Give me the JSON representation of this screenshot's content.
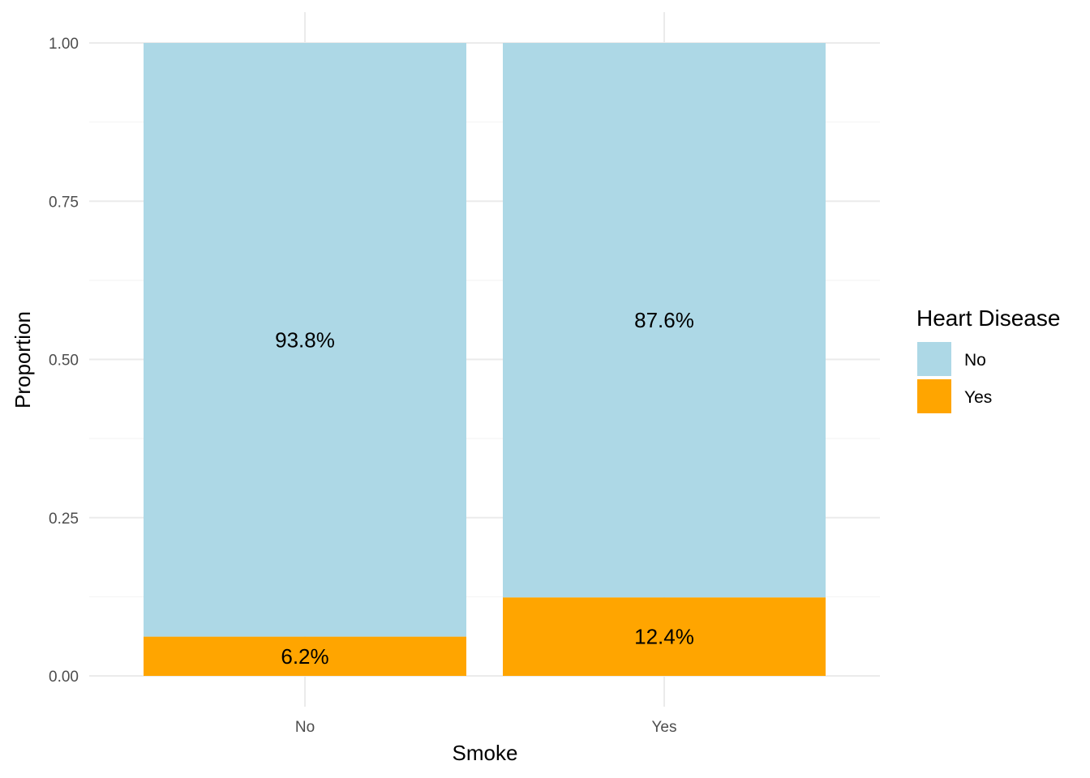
{
  "chart_data": {
    "type": "bar",
    "stacked": true,
    "categories": [
      "No",
      "Yes"
    ],
    "series": [
      {
        "name": "No",
        "values": [
          0.938,
          0.876
        ],
        "labels": [
          "93.8%",
          "87.6%"
        ],
        "color": "#add8e6"
      },
      {
        "name": "Yes",
        "values": [
          0.062,
          0.124
        ],
        "labels": [
          "6.2%",
          "12.4%"
        ],
        "color": "#ffa500"
      }
    ],
    "title": "",
    "xlabel": "Smoke",
    "ylabel": "Proportion",
    "ylim": [
      0,
      1
    ],
    "yticks": [
      "0.00",
      "0.25",
      "0.50",
      "0.75",
      "1.00"
    ],
    "grid": true,
    "legend": {
      "title": "Heart Disease",
      "position": "right"
    }
  }
}
